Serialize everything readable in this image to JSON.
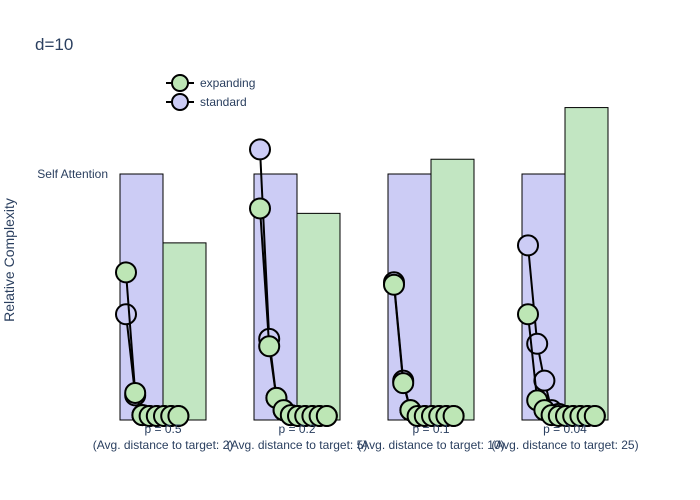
{
  "chart_data": {
    "type": "bar",
    "title": "d=10",
    "ylabel": "Relative Complexity",
    "reference_label": "Self Attention",
    "reference_value": 1.0,
    "ylim": [
      0,
      1.1
    ],
    "grid": false,
    "legend_position": "top-left",
    "categories": [
      {
        "tick": "p = 0.5",
        "subtitle": "(Avg. distance to target: 2)"
      },
      {
        "tick": "p = 0.2",
        "subtitle": "(Avg. distance to target: 5)"
      },
      {
        "tick": "p = 0.1",
        "subtitle": "(Avg. distance to target: 10)"
      },
      {
        "tick": "p = 0.04",
        "subtitle": "(Avg. distance to target: 25)"
      }
    ],
    "series": [
      {
        "name": "standard",
        "bar_color": "#ccccf5",
        "marker_color": "#ccccf5",
        "bar_values": [
          1.0,
          1.0,
          1.0,
          1.0
        ],
        "line_values": [
          [
            0.43,
            0.1,
            0.02,
            0.01,
            0.005,
            0.003,
            0.002,
            0.001
          ],
          [
            1.1,
            0.33,
            0.09,
            0.04,
            0.02,
            0.01,
            0.007,
            0.005,
            0.003,
            0.002
          ],
          [
            0.56,
            0.16,
            0.04,
            0.015,
            0.01,
            0.008,
            0.006,
            0.004,
            0.003
          ],
          [
            0.71,
            0.31,
            0.16,
            0.04,
            0.025,
            0.015,
            0.01,
            0.008,
            0.006,
            0.004
          ]
        ]
      },
      {
        "name": "expanding",
        "bar_color": "#c2e6c2",
        "marker_color": "#bde6b5",
        "bar_values": [
          0.72,
          0.84,
          1.06,
          1.27
        ],
        "line_values": [
          [
            0.6,
            0.11,
            0.02,
            0.01,
            0.005,
            0.003,
            0.002,
            0.001
          ],
          [
            0.86,
            0.3,
            0.09,
            0.04,
            0.02,
            0.01,
            0.007,
            0.005,
            0.003,
            0.002
          ],
          [
            0.55,
            0.15,
            0.04,
            0.015,
            0.01,
            0.008,
            0.006,
            0.004,
            0.003
          ],
          [
            0.43,
            0.08,
            0.04,
            0.02,
            0.015,
            0.01,
            0.008,
            0.006,
            0.004,
            0.003
          ]
        ]
      }
    ]
  }
}
